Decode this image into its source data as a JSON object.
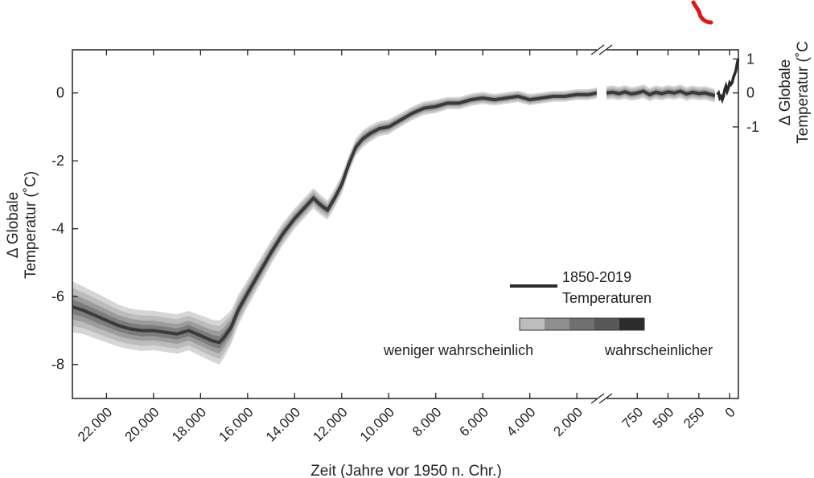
{
  "chart_data": {
    "type": "line",
    "xlabel": "Zeit (Jahre vor 1950 n. Chr.)",
    "ylabel_left": [
      "Δ Globale",
      "Temperatur (˚C)"
    ],
    "ylabel_right": [
      "Δ Globale",
      "Temperatur (˚C"
    ],
    "ylim": [
      -9,
      1.27
    ],
    "left_segment": {
      "xlim": [
        23450,
        1150
      ],
      "ticks": [
        22000,
        20000,
        18000,
        16000,
        14000,
        12000,
        10000,
        8000,
        6000,
        4000,
        2000
      ],
      "tick_labels": [
        "22.000",
        "20.000",
        "18.000",
        "16.000",
        "14.000",
        "12.000",
        "10.000",
        "8.000",
        "6.000",
        "4.000",
        "2.000"
      ]
    },
    "right_segment": {
      "xlim": [
        1000,
        -71
      ],
      "ticks": [
        750,
        500,
        250,
        0
      ],
      "tick_labels": [
        "750",
        "500",
        "250",
        "0"
      ]
    },
    "yticks_left": [
      0,
      -2,
      -4,
      -6,
      -8
    ],
    "yticks_left_labels": [
      "0",
      "-2",
      "-4",
      "-6",
      "-8"
    ],
    "yticks_right": [
      1,
      0,
      -1
    ],
    "yticks_right_labels": [
      "1",
      "0",
      "-1"
    ],
    "reconstruction": {
      "x": [
        23450,
        23000,
        22500,
        22000,
        21500,
        21000,
        20500,
        20000,
        19500,
        19000,
        18500,
        18000,
        17500,
        17200,
        17000,
        16700,
        16400,
        16000,
        15500,
        15000,
        14500,
        14000,
        13600,
        13200,
        12900,
        12600,
        12300,
        12000,
        11700,
        11400,
        11100,
        10800,
        10400,
        10000,
        9500,
        9000,
        8500,
        8000,
        7500,
        7000,
        6500,
        6000,
        5500,
        5000,
        4500,
        4000,
        3500,
        3000,
        2500,
        2000,
        1500,
        1150
      ],
      "y": [
        -6.3,
        -6.4,
        -6.55,
        -6.7,
        -6.85,
        -6.95,
        -7.0,
        -7.0,
        -7.05,
        -7.1,
        -7.0,
        -7.15,
        -7.3,
        -7.35,
        -7.2,
        -6.9,
        -6.4,
        -5.9,
        -5.3,
        -4.7,
        -4.15,
        -3.7,
        -3.4,
        -3.1,
        -3.3,
        -3.45,
        -3.1,
        -2.7,
        -2.1,
        -1.6,
        -1.35,
        -1.2,
        -1.05,
        -1.0,
        -0.8,
        -0.6,
        -0.45,
        -0.4,
        -0.3,
        -0.3,
        -0.2,
        -0.15,
        -0.2,
        -0.15,
        -0.1,
        -0.2,
        -0.15,
        -0.1,
        -0.1,
        -0.05,
        -0.05,
        0.0
      ],
      "uncertainty": [
        0.75,
        0.7,
        0.68,
        0.65,
        0.62,
        0.6,
        0.6,
        0.58,
        0.58,
        0.58,
        0.58,
        0.6,
        0.62,
        0.65,
        0.6,
        0.5,
        0.45,
        0.4,
        0.38,
        0.35,
        0.33,
        0.3,
        0.3,
        0.3,
        0.3,
        0.28,
        0.28,
        0.28,
        0.26,
        0.25,
        0.25,
        0.24,
        0.22,
        0.22,
        0.2,
        0.2,
        0.2,
        0.2,
        0.18,
        0.18,
        0.18,
        0.18,
        0.17,
        0.17,
        0.17,
        0.17,
        0.16,
        0.16,
        0.16,
        0.16,
        0.16,
        0.16
      ]
    },
    "reconstruction_recent": {
      "x": [
        1000,
        950,
        900,
        850,
        800,
        750,
        700,
        650,
        600,
        550,
        500,
        450,
        400,
        350,
        300,
        250,
        200,
        150,
        120
      ],
      "y": [
        0.0,
        0.02,
        -0.02,
        0.03,
        -0.03,
        0.0,
        0.05,
        -0.05,
        0.02,
        -0.02,
        0.03,
        0.0,
        0.05,
        -0.03,
        0.02,
        -0.02,
        0.0,
        -0.05,
        -0.08
      ],
      "uncertainty": 0.2
    },
    "instrumental": {
      "label": [
        "1850-2019",
        "Temperaturen"
      ],
      "x": [
        100,
        90,
        80,
        70,
        60,
        50,
        40,
        30,
        20,
        10,
        0,
        -10,
        -20,
        -30,
        -40,
        -50,
        -60,
        -69
      ],
      "y": [
        -0.05,
        0.0,
        -0.15,
        -0.1,
        -0.2,
        -0.1,
        0.1,
        0.2,
        0.05,
        0.15,
        0.3,
        0.25,
        0.3,
        0.45,
        0.55,
        0.65,
        0.85,
        1.0
      ]
    },
    "legend": {
      "position": "bottom-right",
      "scale_left": "weniger wahrscheinlich",
      "scale_right": "wahrscheinlicher",
      "shades": [
        "#bdbdbd",
        "#8e8e8e",
        "#707070",
        "#585858",
        "#2c2c2c"
      ]
    }
  }
}
